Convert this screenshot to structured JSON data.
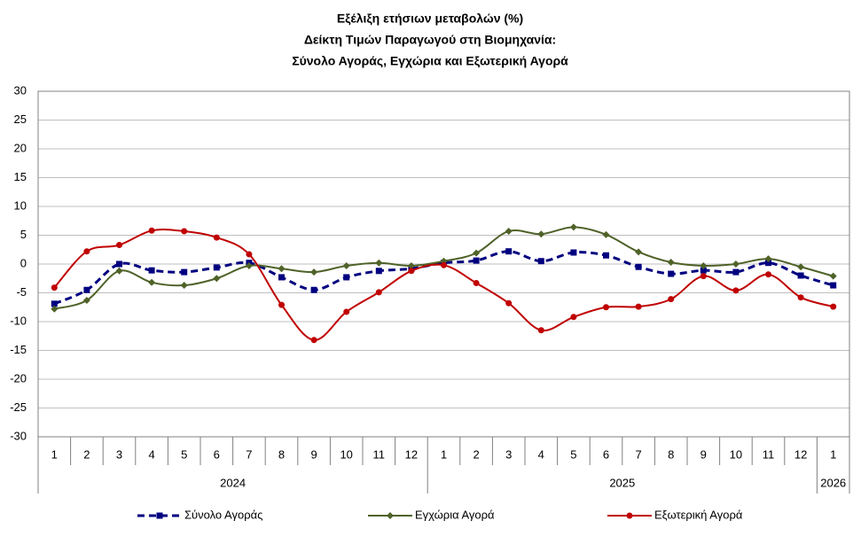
{
  "chart_data": {
    "type": "line",
    "title": [
      "Εξέλιξη ετήσιων μεταβολών (%)",
      "Δείκτη Τιμών Παραγωγού στη Βιομηχανία:",
      "Σύνολο Αγοράς, Εγχώρια και Εξωτερική Αγορά"
    ],
    "categories": [
      "1",
      "2",
      "3",
      "4",
      "5",
      "6",
      "7",
      "8",
      "9",
      "10",
      "11",
      "12",
      "1",
      "2",
      "3",
      "4",
      "5",
      "6",
      "7",
      "8",
      "9",
      "10",
      "11",
      "12",
      "1"
    ],
    "years": [
      "2024",
      "2025",
      "2026"
    ],
    "ylim": [
      -30,
      30
    ],
    "yticks": [
      -30,
      -25,
      -20,
      -15,
      -10,
      -5,
      0,
      5,
      10,
      15,
      20,
      25,
      30
    ],
    "grid": true,
    "legend": "bottom",
    "series": [
      {
        "name": "Σύνολο Αγοράς",
        "color": "#000080",
        "dash": true,
        "marker": "square",
        "values": [
          -6.9,
          -4.5,
          0,
          -1.1,
          -1.4,
          -0.6,
          0.2,
          -2.3,
          -4.5,
          -2.3,
          -1.2,
          -0.8,
          0.2,
          0.6,
          2.2,
          0.5,
          2.0,
          1.5,
          -0.5,
          -1.7,
          -1.1,
          -1.4,
          0.2,
          -2.0,
          -3.7
        ]
      },
      {
        "name": "Εγχώρια Αγορά",
        "color": "#4f6228",
        "dash": false,
        "marker": "diamond",
        "values": [
          -7.8,
          -6.3,
          -1.2,
          -3.2,
          -3.7,
          -2.5,
          -0.3,
          -0.8,
          -1.4,
          -0.3,
          0.2,
          -0.3,
          0.5,
          1.9,
          5.7,
          5.2,
          6.4,
          5.1,
          2.1,
          0.3,
          -0.3,
          0,
          0.9,
          -0.5,
          -2.1
        ]
      },
      {
        "name": "Εξωτερική Αγορά",
        "color": "#c00000",
        "dash": false,
        "marker": "circle",
        "values": [
          -4.1,
          2.2,
          3.3,
          5.8,
          5.7,
          4.6,
          1.7,
          -7.1,
          -13.2,
          -8.3,
          -4.9,
          -1.2,
          -0.2,
          -3.3,
          -6.8,
          -11.5,
          -9.2,
          -7.5,
          -7.4,
          -6.1,
          -2.1,
          -4.6,
          -1.8,
          -5.8,
          -7.4
        ]
      }
    ]
  }
}
